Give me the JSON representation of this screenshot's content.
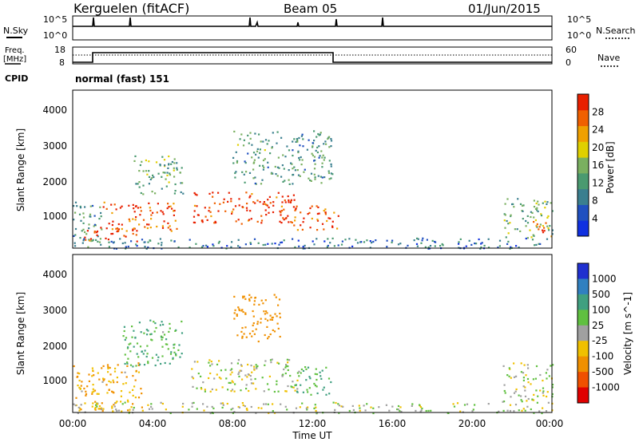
{
  "header": {
    "station": "Kerguelen (fitACF)",
    "beam": "Beam 05",
    "date": "01/Jun/2015"
  },
  "noise_panel": {
    "left_label": "N.Sky",
    "right_label": "N.Search",
    "left_ticks": [
      "10^5",
      "10^0"
    ],
    "right_ticks": [
      "10^5",
      "10^0"
    ]
  },
  "freq_panel": {
    "left_label_1": "Freq.",
    "left_label_2": "[MHz]",
    "right_label": "Nave",
    "left_ticks": [
      "18",
      "8"
    ],
    "right_ticks": [
      "60",
      "0"
    ]
  },
  "cpid": {
    "label": "CPID",
    "value": "normal (fast) 151"
  },
  "colors": {
    "power": [
      "#1030e0",
      "#2050c0",
      "#3a7f8f",
      "#4a9a70",
      "#7ab060",
      "#e0d000",
      "#f0a000",
      "#f06000",
      "#e82000"
    ],
    "velocity": [
      "#2030d0",
      "#3080c0",
      "#40a080",
      "#60c040",
      "#a0a0a0",
      "#f0c000",
      "#f09000",
      "#f05000",
      "#e00000"
    ]
  },
  "chart_data": [
    {
      "type": "heatmap",
      "title": "Power",
      "ylabel": "Slant Range [km]",
      "xlabel": "",
      "yticks": [
        "1000",
        "2000",
        "3000",
        "4000"
      ],
      "ylim": [
        200,
        4600
      ],
      "colorbar_label": "Power [dB]",
      "colorbar_ticks": [
        "4",
        "8",
        "12",
        "16",
        "20",
        "24",
        "28"
      ],
      "colorbar_range": [
        0,
        32
      ],
      "regions": [
        {
          "t0": 0.0,
          "t1": 1.5,
          "r0": 250,
          "r1": 1500,
          "value": 12
        },
        {
          "t0": 0.5,
          "t1": 3.3,
          "r0": 400,
          "r1": 800,
          "value": 30
        },
        {
          "t0": 1.5,
          "t1": 5.2,
          "r0": 700,
          "r1": 1500,
          "value": 28
        },
        {
          "t0": 3.0,
          "t1": 5.5,
          "r0": 1700,
          "r1": 2800,
          "value": 14
        },
        {
          "t0": 6.0,
          "t1": 11.2,
          "r0": 900,
          "r1": 1800,
          "value": 30
        },
        {
          "t0": 11.0,
          "t1": 13.3,
          "r0": 700,
          "r1": 1400,
          "value": 28
        },
        {
          "t0": 8.0,
          "t1": 13.0,
          "r0": 2000,
          "r1": 3500,
          "value": 12
        },
        {
          "t0": 0.0,
          "t1": 24.0,
          "r0": 200,
          "r1": 500,
          "value": 8
        },
        {
          "t0": 21.5,
          "t1": 24.0,
          "r0": 500,
          "r1": 1600,
          "value": 14
        },
        {
          "t0": 23.0,
          "t1": 24.0,
          "r0": 550,
          "r1": 1000,
          "value": 30
        }
      ]
    },
    {
      "type": "heatmap",
      "title": "Velocity",
      "ylabel": "Slant Range [km]",
      "xlabel": "Time UT",
      "yticks": [
        "1000",
        "2000",
        "3000",
        "4000"
      ],
      "ylim": [
        200,
        4600
      ],
      "xticks": [
        "00:00",
        "04:00",
        "08:00",
        "12:00",
        "16:00",
        "20:00",
        "00:00"
      ],
      "xlim": [
        0,
        24
      ],
      "colorbar_label": "Velocity [m s^-1]",
      "colorbar_ticks": [
        "1000",
        "500",
        "100",
        "25",
        "-25",
        "-100",
        "-500",
        "-1000"
      ],
      "regions": [
        {
          "t0": 0.0,
          "t1": 3.5,
          "r0": 250,
          "r1": 1600,
          "value": -100
        },
        {
          "t0": 2.5,
          "t1": 5.5,
          "r0": 1500,
          "r1": 2800,
          "value": 100
        },
        {
          "t0": 5.8,
          "t1": 11.3,
          "r0": 800,
          "r1": 1700,
          "value": 0
        },
        {
          "t0": 11.0,
          "t1": 13.0,
          "r0": 700,
          "r1": 1500,
          "value": 100
        },
        {
          "t0": 8.0,
          "t1": 10.5,
          "r0": 2200,
          "r1": 3500,
          "value": -200
        },
        {
          "t0": 0.0,
          "t1": 24.0,
          "r0": 200,
          "r1": 500,
          "value": 0
        },
        {
          "t0": 21.5,
          "t1": 24.0,
          "r0": 500,
          "r1": 1600,
          "value": 0
        }
      ]
    }
  ]
}
